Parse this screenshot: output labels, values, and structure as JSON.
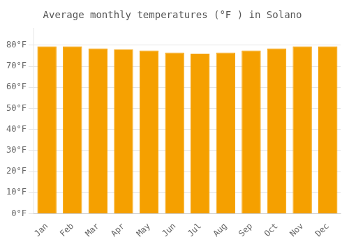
{
  "chart_data": {
    "type": "bar",
    "title": "Average monthly temperatures (°F ) in Solano",
    "categories": [
      "Jan",
      "Feb",
      "Mar",
      "Apr",
      "May",
      "Jun",
      "Jul",
      "Aug",
      "Sep",
      "Oct",
      "Nov",
      "Dec"
    ],
    "values": [
      79.5,
      79.5,
      78.5,
      78.0,
      77.5,
      76.5,
      76.0,
      76.5,
      77.5,
      78.5,
      79.5,
      79.5
    ],
    "color": "#F5A000",
    "ylim": [
      0,
      88
    ],
    "yticks": [
      {
        "value": 0,
        "label": "0°F"
      },
      {
        "value": 10,
        "label": "10°F"
      },
      {
        "value": 20,
        "label": "20°F"
      },
      {
        "value": 30,
        "label": "30°F"
      },
      {
        "value": 40,
        "label": "40°F"
      },
      {
        "value": 50,
        "label": "50°F"
      },
      {
        "value": 60,
        "label": "60°F"
      },
      {
        "value": 70,
        "label": "70°F"
      },
      {
        "value": 80,
        "label": "80°F"
      }
    ],
    "grid": true
  }
}
